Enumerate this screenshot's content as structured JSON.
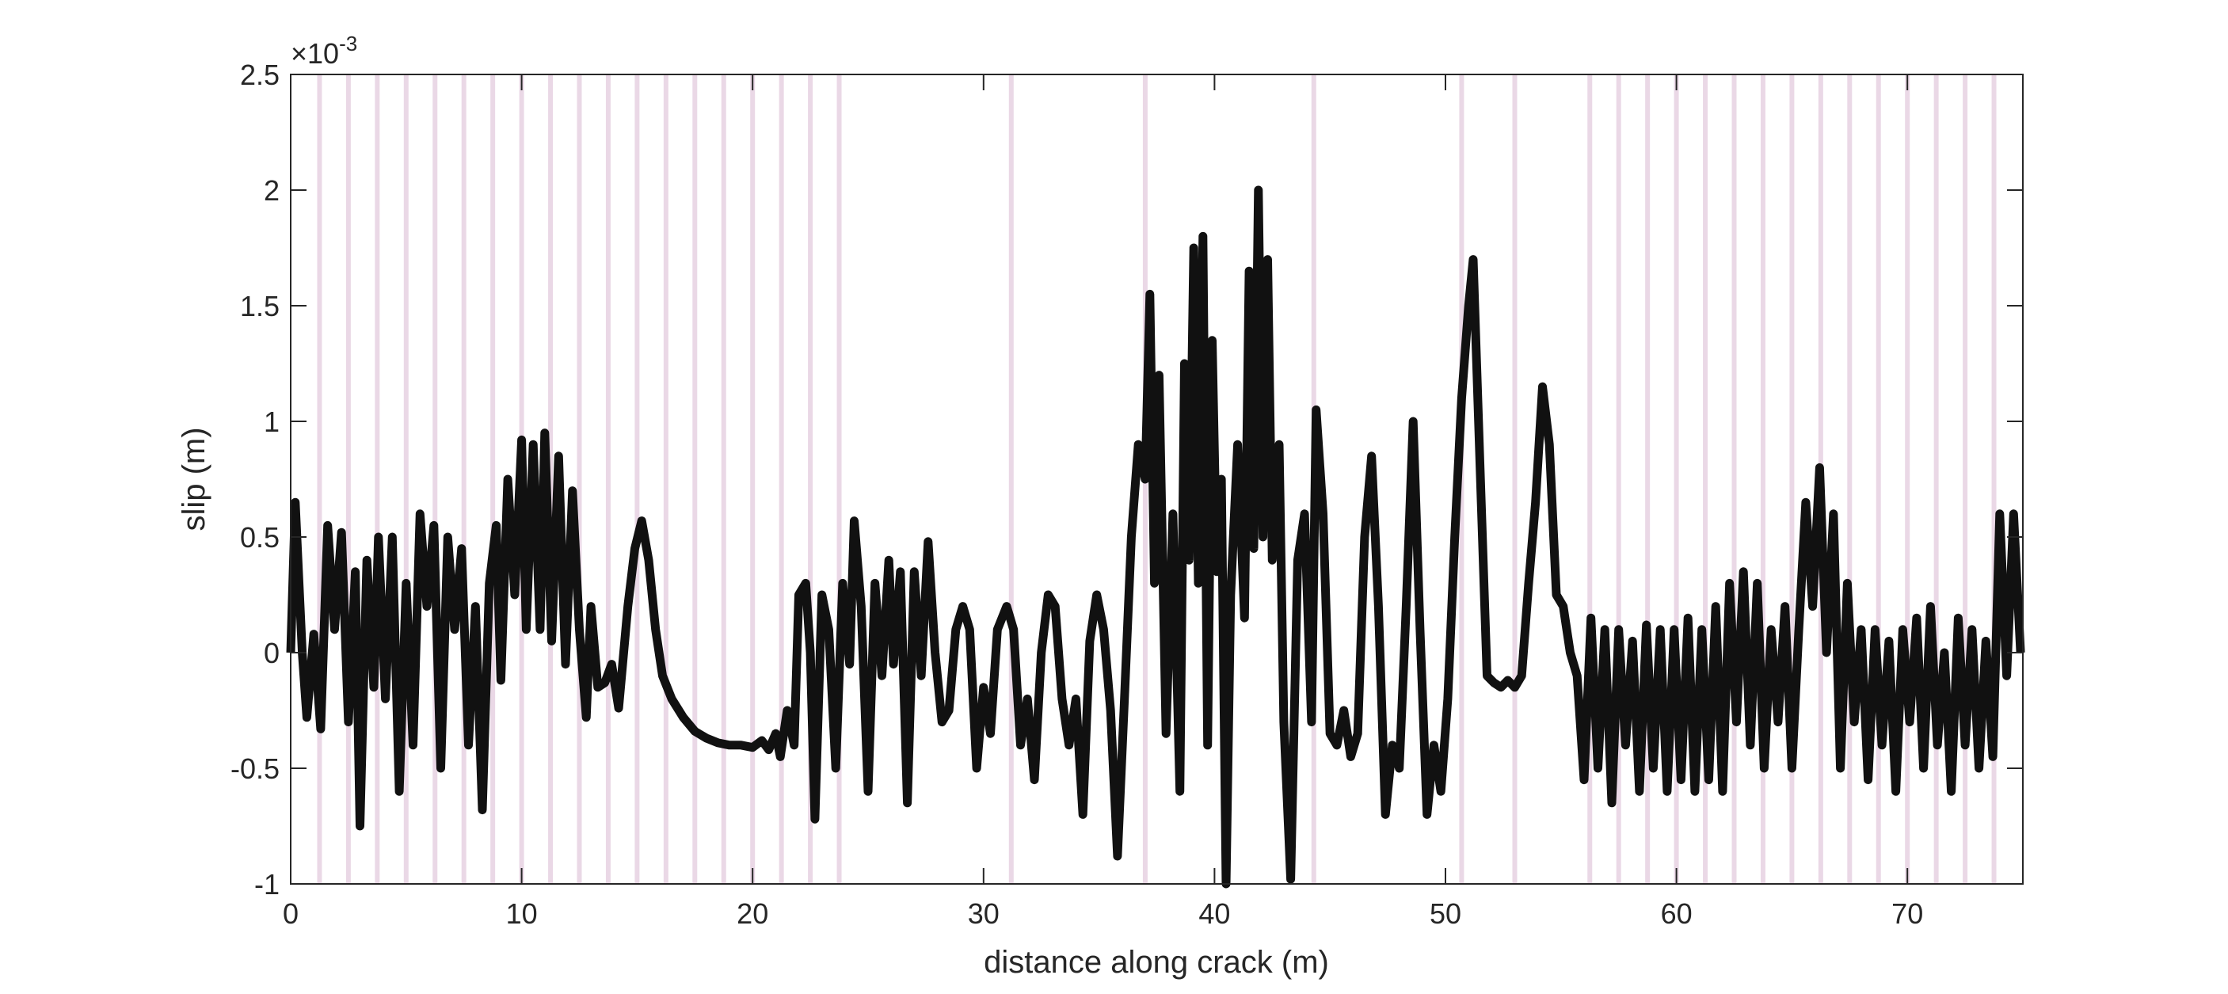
{
  "chart_data": {
    "type": "line",
    "x_label": "distance along crack (m)",
    "y_label": "slip (m)",
    "y_multiplier": "×10",
    "y_exponent": "-3",
    "xlim": [
      0,
      75
    ],
    "xticks": [
      0,
      10,
      20,
      30,
      40,
      50,
      60,
      70
    ],
    "ylim": [
      -1,
      2.5
    ],
    "yticks": [
      -1,
      -0.5,
      0,
      0.5,
      1,
      1.5,
      2,
      2.5
    ],
    "vlines": [
      1.25,
      2.5,
      3.75,
      5,
      6.25,
      7.5,
      8.75,
      10,
      11.25,
      12.5,
      13.75,
      15,
      16.25,
      17.5,
      18.75,
      20,
      21.25,
      22.5,
      23.75,
      31.2,
      37,
      44.3,
      50.7,
      53,
      56.25,
      57.5,
      58.75,
      60,
      61.25,
      62.5,
      63.75,
      65,
      66.25,
      67.5,
      68.75,
      70,
      71.25,
      72.5,
      73.75
    ],
    "vline_color": "#ead8e6",
    "x": [
      0,
      0.2,
      0.5,
      0.7,
      1.0,
      1.3,
      1.6,
      1.9,
      2.2,
      2.5,
      2.8,
      3.0,
      3.3,
      3.6,
      3.8,
      4.1,
      4.4,
      4.7,
      5.0,
      5.3,
      5.6,
      5.9,
      6.2,
      6.5,
      6.8,
      7.1,
      7.4,
      7.7,
      8.0,
      8.3,
      8.6,
      8.9,
      9.1,
      9.4,
      9.7,
      10.0,
      10.2,
      10.5,
      10.8,
      11.0,
      11.3,
      11.6,
      11.9,
      12.2,
      12.5,
      12.8,
      13.0,
      13.3,
      13.6,
      13.9,
      14.2,
      14.6,
      14.9,
      15.2,
      15.5,
      15.8,
      16.1,
      16.5,
      17,
      17.5,
      18,
      18.5,
      19,
      19.5,
      20,
      20.4,
      20.7,
      21,
      21.2,
      21.5,
      21.8,
      22,
      22.3,
      22.5,
      22.7,
      23,
      23.3,
      23.6,
      23.9,
      24.2,
      24.4,
      24.7,
      25.0,
      25.3,
      25.6,
      25.9,
      26.1,
      26.4,
      26.7,
      27.0,
      27.3,
      27.6,
      27.9,
      28.2,
      28.5,
      28.8,
      29.1,
      29.4,
      29.7,
      30.0,
      30.3,
      30.6,
      31.0,
      31.3,
      31.6,
      31.9,
      32.2,
      32.5,
      32.8,
      33.1,
      33.4,
      33.7,
      34.0,
      34.3,
      34.6,
      34.9,
      35.2,
      35.5,
      35.8,
      36.1,
      36.4,
      36.7,
      37.0,
      37.2,
      37.4,
      37.6,
      37.9,
      38.2,
      38.5,
      38.7,
      38.9,
      39.1,
      39.3,
      39.5,
      39.7,
      39.9,
      40.1,
      40.3,
      40.5,
      40.7,
      41.0,
      41.3,
      41.5,
      41.7,
      41.9,
      42.1,
      42.3,
      42.5,
      42.8,
      43.0,
      43.3,
      43.6,
      43.9,
      44.2,
      44.4,
      44.7,
      45.0,
      45.3,
      45.6,
      45.9,
      46.2,
      46.5,
      46.8,
      47.1,
      47.4,
      47.7,
      48.0,
      48.3,
      48.6,
      48.9,
      49.2,
      49.5,
      49.8,
      50.1,
      50.4,
      50.7,
      51.0,
      51.2,
      51.5,
      51.8,
      52.1,
      52.4,
      52.7,
      53.0,
      53.3,
      53.6,
      53.9,
      54.2,
      54.5,
      54.8,
      55.1,
      55.4,
      55.7,
      56.0,
      56.3,
      56.6,
      56.9,
      57.2,
      57.5,
      57.8,
      58.1,
      58.4,
      58.7,
      59.0,
      59.3,
      59.6,
      59.9,
      60.2,
      60.5,
      60.8,
      61.1,
      61.4,
      61.7,
      62.0,
      62.3,
      62.6,
      62.9,
      63.2,
      63.5,
      63.8,
      64.1,
      64.4,
      64.7,
      65.0,
      65.3,
      65.6,
      65.9,
      66.2,
      66.5,
      66.8,
      67.1,
      67.4,
      67.7,
      68.0,
      68.3,
      68.6,
      68.9,
      69.2,
      69.5,
      69.8,
      70.1,
      70.4,
      70.7,
      71.0,
      71.3,
      71.6,
      71.9,
      72.2,
      72.5,
      72.8,
      73.1,
      73.4,
      73.7,
      74.0,
      74.3,
      74.6,
      74.9
    ],
    "series": [
      {
        "color": "#111111",
        "values": [
          0,
          0.65,
          0,
          -0.28,
          0.08,
          -0.33,
          0.55,
          0.1,
          0.52,
          -0.3,
          0.35,
          -0.75,
          0.4,
          -0.15,
          0.5,
          -0.2,
          0.5,
          -0.6,
          0.3,
          -0.4,
          0.6,
          0.2,
          0.55,
          -0.5,
          0.5,
          0.1,
          0.45,
          -0.4,
          0.2,
          -0.68,
          0.3,
          0.55,
          -0.12,
          0.75,
          0.25,
          0.92,
          0.1,
          0.9,
          0.1,
          0.95,
          0.05,
          0.85,
          -0.05,
          0.7,
          0.1,
          -0.28,
          0.2,
          -0.15,
          -0.13,
          -0.05,
          -0.24,
          0.2,
          0.45,
          0.57,
          0.4,
          0.1,
          -0.1,
          -0.2,
          -0.28,
          -0.34,
          -0.37,
          -0.39,
          -0.4,
          -0.4,
          -0.41,
          -0.38,
          -0.42,
          -0.35,
          -0.45,
          -0.25,
          -0.4,
          0.25,
          0.3,
          0,
          -0.72,
          0.25,
          0.1,
          -0.5,
          0.3,
          -0.05,
          0.57,
          0.2,
          -0.6,
          0.3,
          -0.1,
          0.4,
          -0.05,
          0.35,
          -0.65,
          0.35,
          -0.1,
          0.48,
          0,
          -0.3,
          -0.25,
          0.1,
          0.2,
          0.1,
          -0.5,
          -0.15,
          -0.35,
          0.1,
          0.2,
          0.1,
          -0.4,
          -0.2,
          -0.55,
          0,
          0.25,
          0.2,
          -0.2,
          -0.4,
          -0.2,
          -0.7,
          0.05,
          0.25,
          0.1,
          -0.25,
          -0.88,
          -0.2,
          0.5,
          0.9,
          0.75,
          1.55,
          0.3,
          1.2,
          -0.35,
          0.6,
          -0.6,
          1.25,
          0.4,
          1.75,
          0.3,
          1.8,
          -0.4,
          1.35,
          0.35,
          0.75,
          -1.0,
          0.25,
          0.9,
          0.15,
          1.65,
          0.45,
          2.0,
          0.5,
          1.7,
          0.4,
          0.9,
          -0.3,
          -0.98,
          0.4,
          0.6,
          -0.3,
          1.05,
          0.6,
          -0.35,
          -0.4,
          -0.25,
          -0.45,
          -0.35,
          0.5,
          0.85,
          0.2,
          -0.7,
          -0.4,
          -0.5,
          0.2,
          1.0,
          0.1,
          -0.7,
          -0.4,
          -0.6,
          -0.2,
          0.5,
          1.1,
          1.5,
          1.7,
          0.8,
          -0.1,
          -0.13,
          -0.15,
          -0.12,
          -0.15,
          -0.1,
          0.3,
          0.65,
          1.15,
          0.9,
          0.25,
          0.2,
          0,
          -0.1,
          -0.55,
          0.15,
          -0.5,
          0.1,
          -0.65,
          0.1,
          -0.4,
          0.05,
          -0.6,
          0.12,
          -0.5,
          0.1,
          -0.6,
          0.1,
          -0.55,
          0.15,
          -0.6,
          0.1,
          -0.55,
          0.2,
          -0.6,
          0.3,
          -0.3,
          0.35,
          -0.4,
          0.3,
          -0.5,
          0.1,
          -0.3,
          0.2,
          -0.5,
          0.1,
          0.65,
          0.2,
          0.8,
          0,
          0.6,
          -0.5,
          0.3,
          -0.3,
          0.1,
          -0.55,
          0.1,
          -0.4,
          0.05,
          -0.6,
          0.1,
          -0.3,
          0.15,
          -0.5,
          0.2,
          -0.4,
          0,
          -0.6,
          0.15,
          -0.4,
          0.1,
          -0.5,
          0.05,
          -0.45,
          0.6,
          -0.1,
          0.6,
          0
        ]
      }
    ]
  }
}
